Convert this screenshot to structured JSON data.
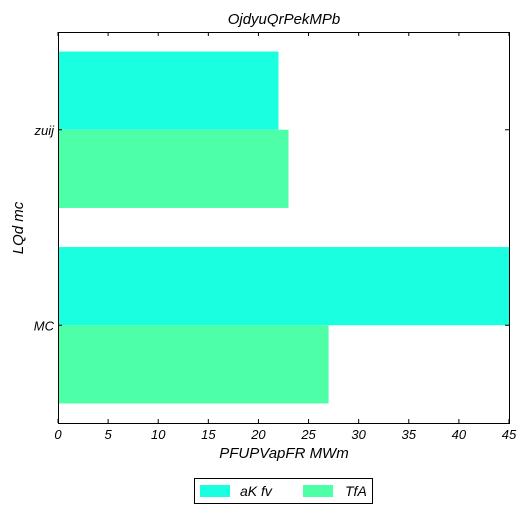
{
  "chart_data": {
    "type": "bar",
    "orientation": "horizontal",
    "title": "OjdyuQrPekMPb",
    "xlabel": "PFUPVapFR MWm",
    "ylabel": "LQd  mc",
    "categories": [
      "MC",
      "zuij"
    ],
    "series": [
      {
        "name": "aK fv",
        "values": [
          45,
          22
        ],
        "color": "#19ffe0"
      },
      {
        "name": "TfA",
        "values": [
          27,
          23
        ],
        "color": "#4dffa6"
      }
    ],
    "xlim": [
      0,
      45
    ],
    "xticks": [
      "0",
      "5",
      "10",
      "15",
      "20",
      "25",
      "30",
      "35",
      "40",
      "45"
    ],
    "grid": false,
    "legend_position": "bottom-center"
  }
}
